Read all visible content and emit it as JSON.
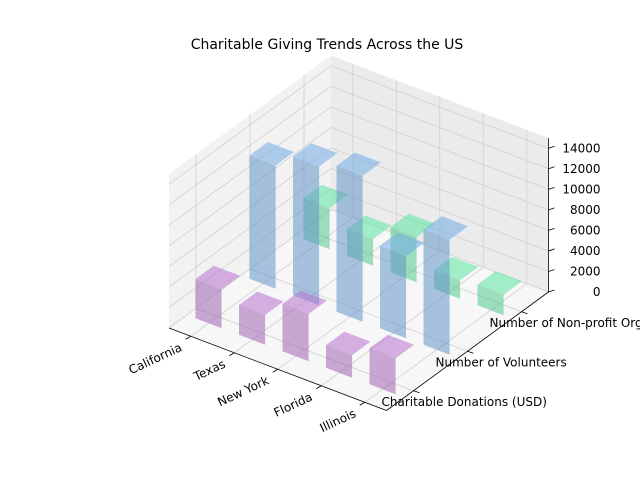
{
  "chart_data": {
    "type": "bar3d",
    "title": "Charitable Giving Trends Across the US",
    "categories": [
      "California",
      "Texas",
      "New York",
      "Florida",
      "Illinois"
    ],
    "series": [
      {
        "name": "Charitable Donations (USD)",
        "values": [
          3800,
          2900,
          4600,
          2200,
          3500
        ],
        "color": "#a064b4"
      },
      {
        "name": "Number of Volunteers",
        "values": [
          12000,
          13500,
          14200,
          8000,
          11200
        ],
        "color": "#6496c8"
      },
      {
        "name": "Number of Non-profit Organizations",
        "values": [
          4000,
          2600,
          4400,
          1800,
          2000
        ],
        "color": "#50c88c"
      }
    ],
    "zlim": [
      0,
      15000
    ],
    "zticks": [
      "0",
      "2000",
      "4000",
      "6000",
      "8000",
      "10000",
      "12000",
      "14000"
    ],
    "grid": true
  }
}
